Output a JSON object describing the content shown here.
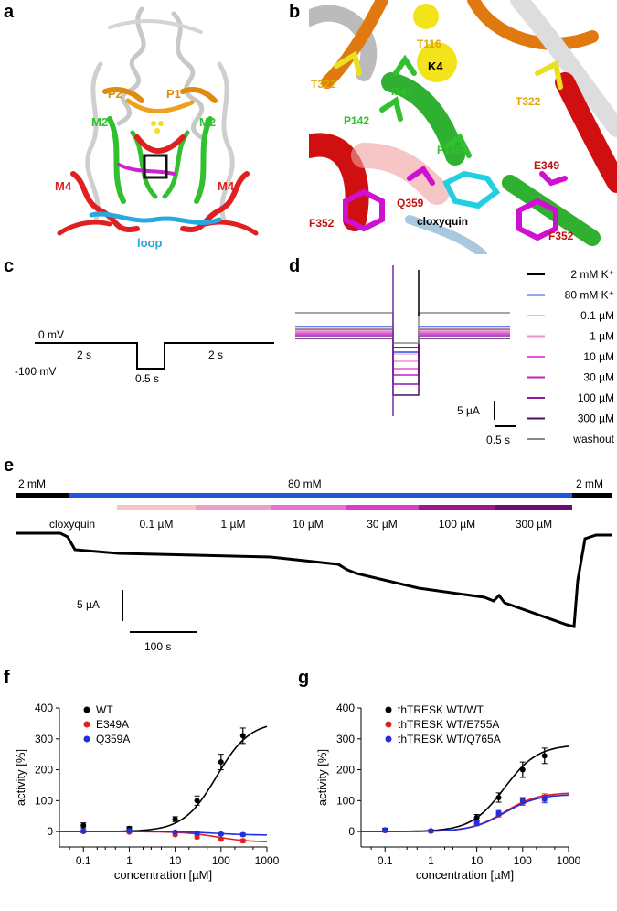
{
  "panels": {
    "a": "a",
    "b": "b",
    "c": "c",
    "d": "d",
    "e": "e",
    "f": "f",
    "g": "g"
  },
  "panel_a": {
    "labels": {
      "p1": "P1",
      "p2": "P2",
      "m2_left": "M2",
      "m2_right": "M2",
      "m4_left": "M4",
      "m4_right": "M4",
      "loop": "loop"
    }
  },
  "panel_b": {
    "labels": {
      "t116": "T116",
      "k4": "K4",
      "t322_left": "T322",
      "t322_right": "T322",
      "i141": "I141",
      "p142": "P142",
      "f145": "F145",
      "e349": "E349",
      "q359": "Q359",
      "f352_left": "F352",
      "f352_right": "F352",
      "cloxyquin": "cloxyquin"
    }
  },
  "panel_c": {
    "v0": "0 mV",
    "v1": "-100 mV",
    "t1": "2 s",
    "t2": "0.5 s",
    "t3": "2 s"
  },
  "panel_d": {
    "legend": [
      {
        "label": "2 mM K⁺",
        "color": "#000000"
      },
      {
        "label": "80 mM K⁺",
        "color": "#2255dd"
      },
      {
        "label": "0.1 µM",
        "color": "#f2b8d8"
      },
      {
        "label": "1 µM",
        "color": "#ee90cc"
      },
      {
        "label": "10 µM",
        "color": "#e455d6"
      },
      {
        "label": "30 µM",
        "color": "#c020c0"
      },
      {
        "label": "100 µM",
        "color": "#8a1aa0"
      },
      {
        "label": "300 µM",
        "color": "#4a1060"
      },
      {
        "label": "washout",
        "color": "#888888"
      }
    ],
    "scale_y": "5 µA",
    "scale_x": "0.5 s"
  },
  "panel_e": {
    "bar_left": "2 mM",
    "bar_mid": "80 mM",
    "bar_right": "2 mM",
    "cloxyquin": "cloxyquin",
    "concs": [
      {
        "label": "0.1 µM",
        "color": "#f5c6c6"
      },
      {
        "label": "1 µM",
        "color": "#ef9ec8"
      },
      {
        "label": "10 µM",
        "color": "#e870d0"
      },
      {
        "label": "30 µM",
        "color": "#d83cc8"
      },
      {
        "label": "100 µM",
        "color": "#a0148c"
      },
      {
        "label": "300 µM",
        "color": "#6a0c70"
      }
    ],
    "scale_y": "5 µA",
    "scale_x": "100 s"
  },
  "chart_data": [
    {
      "type": "scatter",
      "panel": "f",
      "xlabel": "concentration [µM]",
      "ylabel": "activity [%]",
      "xscale": "log",
      "xlim": [
        0.03,
        1000
      ],
      "ylim": [
        -50,
        400
      ],
      "xticks": [
        "0.1",
        "1",
        "10",
        "100",
        "1000"
      ],
      "yticks": [
        "0",
        "100",
        "200",
        "300",
        "400"
      ],
      "legend_position": "top-left",
      "series": [
        {
          "name": "WT",
          "color": "#000000",
          "x": [
            0.1,
            1,
            10,
            30,
            100,
            300
          ],
          "y": [
            20,
            10,
            40,
            100,
            225,
            310
          ],
          "err": [
            8,
            6,
            8,
            15,
            25,
            25
          ]
        },
        {
          "name": "E349A",
          "color": "#e02020",
          "x": [
            0.1,
            1,
            10,
            30,
            100,
            300
          ],
          "y": [
            0,
            -2,
            -10,
            -18,
            -25,
            -30
          ],
          "err": [
            4,
            3,
            4,
            5,
            5,
            6
          ]
        },
        {
          "name": "Q359A",
          "color": "#2030e0",
          "x": [
            0.1,
            1,
            10,
            30,
            100,
            300
          ],
          "y": [
            2,
            3,
            -2,
            -5,
            -8,
            -10
          ],
          "err": [
            4,
            3,
            3,
            4,
            4,
            5
          ]
        }
      ]
    },
    {
      "type": "scatter",
      "panel": "g",
      "xlabel": "concentration [µM]",
      "ylabel": "activity [%]",
      "xscale": "log",
      "xlim": [
        0.03,
        1000
      ],
      "ylim": [
        -50,
        400
      ],
      "xticks": [
        "0.1",
        "1",
        "10",
        "100",
        "1000"
      ],
      "yticks": [
        "0",
        "100",
        "200",
        "300",
        "400"
      ],
      "legend_position": "top-left",
      "series": [
        {
          "name": "thTRESK WT/WT",
          "color": "#000000",
          "x": [
            0.1,
            1,
            10,
            30,
            100,
            300
          ],
          "y": [
            5,
            2,
            45,
            110,
            200,
            245
          ],
          "err": [
            6,
            5,
            10,
            15,
            25,
            25
          ]
        },
        {
          "name": "thTRESK WT/E755A",
          "color": "#e02020",
          "x": [
            0.1,
            1,
            10,
            30,
            100,
            300
          ],
          "y": [
            3,
            1,
            25,
            55,
            95,
            110
          ],
          "err": [
            5,
            4,
            6,
            8,
            10,
            12
          ]
        },
        {
          "name": "thTRESK WT/Q765A",
          "color": "#2030e0",
          "x": [
            0.1,
            1,
            10,
            30,
            100,
            300
          ],
          "y": [
            4,
            2,
            30,
            60,
            100,
            105
          ],
          "err": [
            5,
            4,
            6,
            8,
            10,
            12
          ]
        }
      ]
    }
  ]
}
